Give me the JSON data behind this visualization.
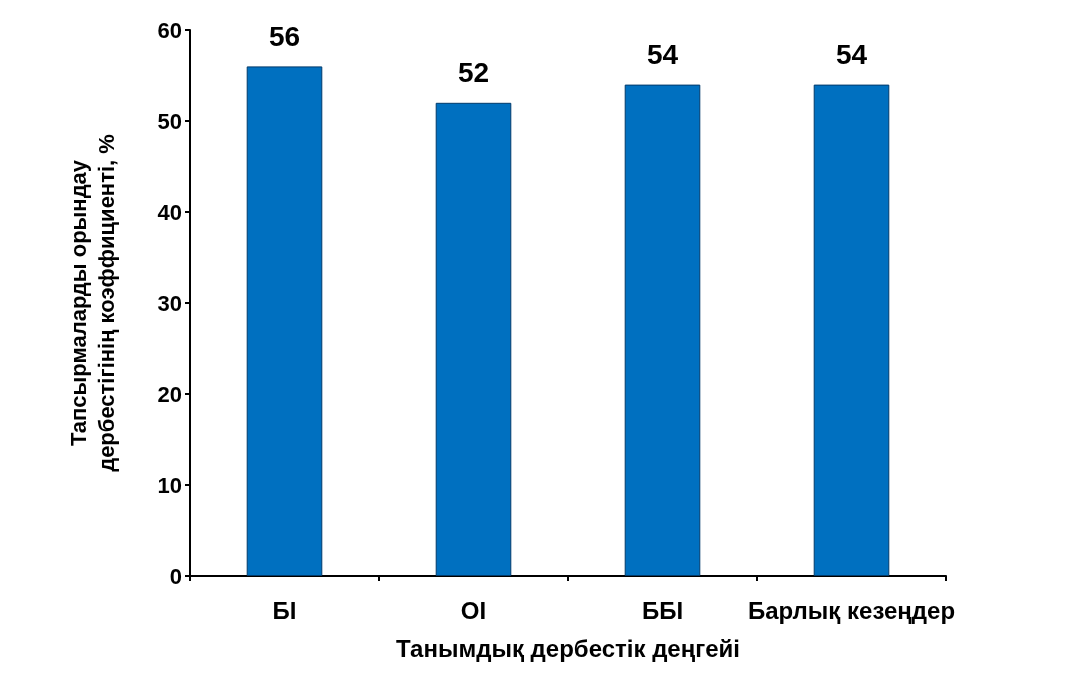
{
  "chart_data": {
    "type": "bar",
    "xlabel": "Танымдық дербестік деңгейі",
    "ylabel": "Тапсырмаларды орындау\nдербестігінің коэффициенті, %",
    "categories": [
      "БІ",
      "ОІ",
      "ББІ",
      "Барлық кезеңдер"
    ],
    "values": [
      56,
      52,
      54,
      54
    ],
    "color": "#0070c0",
    "ylim": [
      0,
      60
    ],
    "yticks": [
      0,
      10,
      20,
      30,
      40,
      50,
      60
    ],
    "grid": false,
    "data_labels": true
  }
}
